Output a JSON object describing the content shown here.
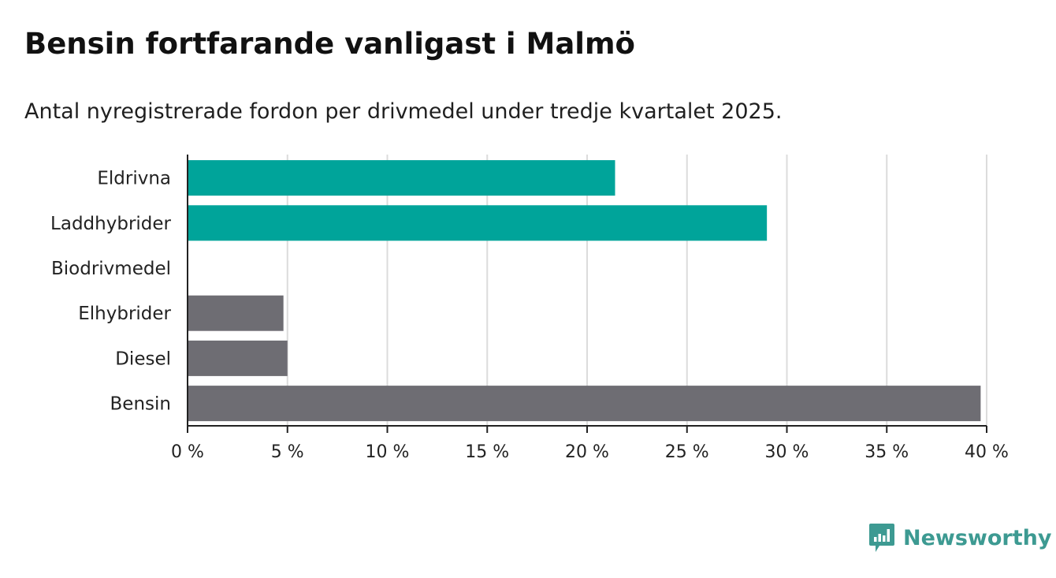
{
  "chart_data": {
    "type": "bar",
    "orientation": "horizontal",
    "title": "Bensin fortfarande vanligast i Malmö",
    "subtitle": "Antal nyregistrerade fordon per drivmedel under tredje kvartalet 2025.",
    "categories": [
      "Eldrivna",
      "Laddhybrider",
      "Biodrivmedel",
      "Elhybrider",
      "Diesel",
      "Bensin"
    ],
    "values": [
      21.4,
      29.0,
      0,
      4.8,
      5.0,
      39.7
    ],
    "bar_colors": [
      "#00a49a",
      "#00a49a",
      "#00a49a",
      "#6e6d73",
      "#6e6d73",
      "#6e6d73"
    ],
    "xlim": [
      0,
      40
    ],
    "xticks": [
      0,
      5,
      10,
      15,
      20,
      25,
      30,
      35,
      40
    ],
    "xtick_labels": [
      "0 %",
      "5 %",
      "10 %",
      "15 %",
      "20 %",
      "25 %",
      "30 %",
      "35 %",
      "40 %"
    ],
    "xlabel": "",
    "ylabel": "",
    "grid": true
  },
  "branding": {
    "name": "Newsworthy",
    "color": "#3d9a92"
  },
  "colors": {
    "gridline": "#dcdcdc",
    "axis": "#222222"
  }
}
